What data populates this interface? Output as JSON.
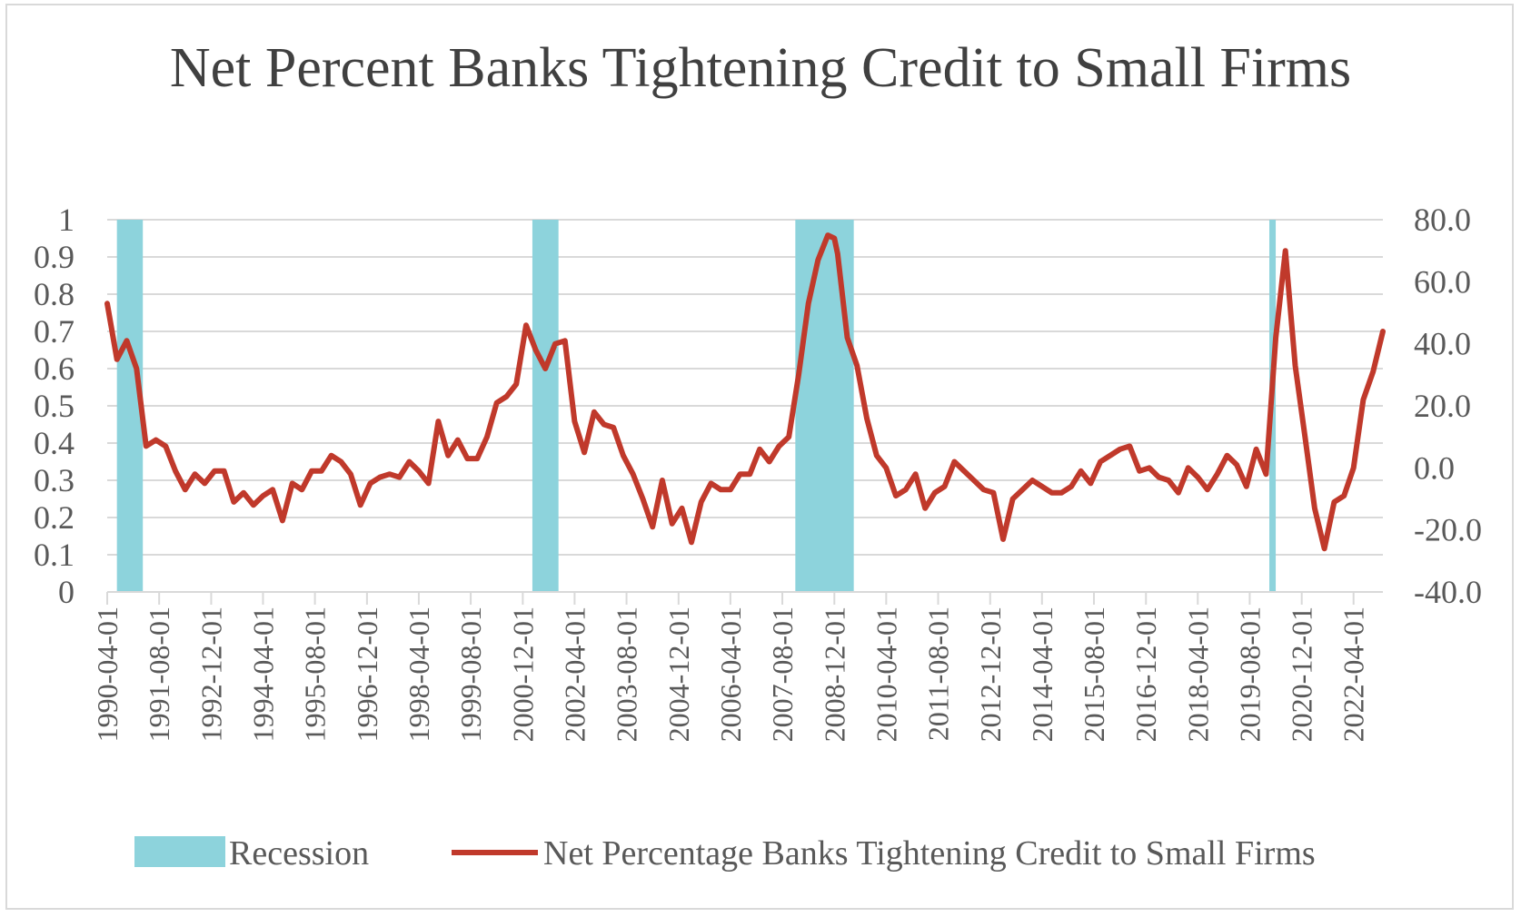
{
  "chart_data": {
    "type": "line",
    "title": "Net Percent Banks Tightening Credit to Small Firms",
    "left_axis": {
      "ylim": [
        0,
        1
      ],
      "ticks": [
        "0",
        "0.1",
        "0.2",
        "0.3",
        "0.4",
        "0.5",
        "0.6",
        "0.7",
        "0.8",
        "0.9",
        "1"
      ]
    },
    "right_axis": {
      "ylim": [
        -40,
        80
      ],
      "ticks": [
        "-40.0",
        "-20.0",
        "0.0",
        "20.0",
        "40.0",
        "60.0",
        "80.0"
      ]
    },
    "x_tick_labels": [
      "1990-04-01",
      "1991-08-01",
      "1992-12-01",
      "1994-04-01",
      "1995-08-01",
      "1996-12-01",
      "1998-04-01",
      "1999-08-01",
      "2000-12-01",
      "2002-04-01",
      "2003-08-01",
      "2004-12-01",
      "2006-04-01",
      "2007-08-01",
      "2008-12-01",
      "2010-04-01",
      "2011-08-01",
      "2012-12-01",
      "2014-04-01",
      "2015-08-01",
      "2016-12-01",
      "2018-04-01",
      "2019-08-01",
      "2020-12-01",
      "2022-04-01"
    ],
    "x_range": [
      "1990-04-01",
      "2023-01-01"
    ],
    "grid": true,
    "legend_position": "bottom",
    "colors": {
      "recession": "#8dd3dc",
      "line": "#c0392b",
      "grid": "#d9d9d9",
      "axis_text": "#595959"
    },
    "series": [
      {
        "name": "Recession",
        "type": "bar",
        "axis": "left",
        "value": 1,
        "periods": [
          [
            "1990-07-01",
            "1991-03-01"
          ],
          [
            "2001-03-01",
            "2001-11-01"
          ],
          [
            "2007-12-01",
            "2009-06-01"
          ],
          [
            "2020-02-01",
            "2020-04-01"
          ]
        ]
      },
      {
        "name": "Net Percentage Banks Tightening Credit to Small Firms",
        "type": "line",
        "axis": "right",
        "points": [
          [
            "1990-04-01",
            53
          ],
          [
            "1990-07-01",
            35
          ],
          [
            "1990-10-01",
            41
          ],
          [
            "1991-01-01",
            32
          ],
          [
            "1991-04-01",
            7
          ],
          [
            "1991-07-01",
            9
          ],
          [
            "1991-10-01",
            7
          ],
          [
            "1992-01-01",
            -1
          ],
          [
            "1992-04-01",
            -7
          ],
          [
            "1992-07-01",
            -2
          ],
          [
            "1992-10-01",
            -5
          ],
          [
            "1993-01-01",
            -1
          ],
          [
            "1993-04-01",
            -1
          ],
          [
            "1993-07-01",
            -11
          ],
          [
            "1993-10-01",
            -8
          ],
          [
            "1994-01-01",
            -12
          ],
          [
            "1994-04-01",
            -9
          ],
          [
            "1994-07-01",
            -7
          ],
          [
            "1994-10-01",
            -17
          ],
          [
            "1995-01-01",
            -5
          ],
          [
            "1995-04-01",
            -7
          ],
          [
            "1995-07-01",
            -1
          ],
          [
            "1995-10-01",
            -1
          ],
          [
            "1996-01-01",
            4
          ],
          [
            "1996-04-01",
            2
          ],
          [
            "1996-07-01",
            -2
          ],
          [
            "1996-10-01",
            -12
          ],
          [
            "1997-01-01",
            -5
          ],
          [
            "1997-04-01",
            -3
          ],
          [
            "1997-07-01",
            -2
          ],
          [
            "1997-10-01",
            -3
          ],
          [
            "1998-01-01",
            2
          ],
          [
            "1998-04-01",
            -1
          ],
          [
            "1998-07-01",
            -5
          ],
          [
            "1998-10-01",
            15
          ],
          [
            "1999-01-01",
            4
          ],
          [
            "1999-04-01",
            9
          ],
          [
            "1999-07-01",
            3
          ],
          [
            "1999-10-01",
            3
          ],
          [
            "2000-01-01",
            10
          ],
          [
            "2000-04-01",
            21
          ],
          [
            "2000-07-01",
            23
          ],
          [
            "2000-10-01",
            27
          ],
          [
            "2001-01-01",
            46
          ],
          [
            "2001-04-01",
            38
          ],
          [
            "2001-07-01",
            32
          ],
          [
            "2001-10-01",
            40
          ],
          [
            "2002-01-01",
            41
          ],
          [
            "2002-04-01",
            15
          ],
          [
            "2002-07-01",
            5
          ],
          [
            "2002-10-01",
            18
          ],
          [
            "2003-01-01",
            14
          ],
          [
            "2003-04-01",
            13
          ],
          [
            "2003-07-01",
            4
          ],
          [
            "2003-10-01",
            -2
          ],
          [
            "2004-01-01",
            -10
          ],
          [
            "2004-04-01",
            -19
          ],
          [
            "2004-07-01",
            -4
          ],
          [
            "2004-10-01",
            -18
          ],
          [
            "2005-01-01",
            -13
          ],
          [
            "2005-04-01",
            -24
          ],
          [
            "2005-07-01",
            -11
          ],
          [
            "2005-10-01",
            -5
          ],
          [
            "2006-01-01",
            -7
          ],
          [
            "2006-04-01",
            -7
          ],
          [
            "2006-07-01",
            -2
          ],
          [
            "2006-10-01",
            -2
          ],
          [
            "2007-01-01",
            6
          ],
          [
            "2007-04-01",
            2
          ],
          [
            "2007-07-01",
            7
          ],
          [
            "2007-10-01",
            10
          ],
          [
            "2008-01-01",
            30
          ],
          [
            "2008-04-01",
            53
          ],
          [
            "2008-07-01",
            67
          ],
          [
            "2008-10-01",
            75
          ],
          [
            "2008-12-01",
            74
          ],
          [
            "2009-01-01",
            69
          ],
          [
            "2009-04-01",
            42
          ],
          [
            "2009-07-01",
            33
          ],
          [
            "2009-10-01",
            16
          ],
          [
            "2010-01-01",
            4
          ],
          [
            "2010-04-01",
            0
          ],
          [
            "2010-07-01",
            -9
          ],
          [
            "2010-10-01",
            -7
          ],
          [
            "2011-01-01",
            -2
          ],
          [
            "2011-04-01",
            -13
          ],
          [
            "2011-07-01",
            -8
          ],
          [
            "2011-10-01",
            -6
          ],
          [
            "2012-01-01",
            2
          ],
          [
            "2012-04-01",
            -1
          ],
          [
            "2012-07-01",
            -4
          ],
          [
            "2012-10-01",
            -7
          ],
          [
            "2013-01-01",
            -8
          ],
          [
            "2013-04-01",
            -23
          ],
          [
            "2013-07-01",
            -10
          ],
          [
            "2013-10-01",
            -7
          ],
          [
            "2014-01-01",
            -4
          ],
          [
            "2014-04-01",
            -6
          ],
          [
            "2014-07-01",
            -8
          ],
          [
            "2014-10-01",
            -8
          ],
          [
            "2015-01-01",
            -6
          ],
          [
            "2015-04-01",
            -1
          ],
          [
            "2015-07-01",
            -5
          ],
          [
            "2015-10-01",
            2
          ],
          [
            "2016-01-01",
            4
          ],
          [
            "2016-04-01",
            6
          ],
          [
            "2016-07-01",
            7
          ],
          [
            "2016-10-01",
            -1
          ],
          [
            "2017-01-01",
            0
          ],
          [
            "2017-04-01",
            -3
          ],
          [
            "2017-07-01",
            -4
          ],
          [
            "2017-10-01",
            -8
          ],
          [
            "2018-01-01",
            0
          ],
          [
            "2018-04-01",
            -3
          ],
          [
            "2018-07-01",
            -7
          ],
          [
            "2018-10-01",
            -2
          ],
          [
            "2019-01-01",
            4
          ],
          [
            "2019-04-01",
            1
          ],
          [
            "2019-07-01",
            -6
          ],
          [
            "2019-10-01",
            6
          ],
          [
            "2020-01-01",
            -2
          ],
          [
            "2020-04-01",
            42
          ],
          [
            "2020-07-01",
            70
          ],
          [
            "2020-10-01",
            33
          ],
          [
            "2021-01-01",
            10
          ],
          [
            "2021-04-01",
            -13
          ],
          [
            "2021-07-01",
            -26
          ],
          [
            "2021-10-01",
            -11
          ],
          [
            "2022-01-01",
            -9
          ],
          [
            "2022-04-01",
            0
          ],
          [
            "2022-07-01",
            22
          ],
          [
            "2022-10-01",
            31
          ],
          [
            "2023-01-01",
            44
          ]
        ]
      }
    ]
  }
}
